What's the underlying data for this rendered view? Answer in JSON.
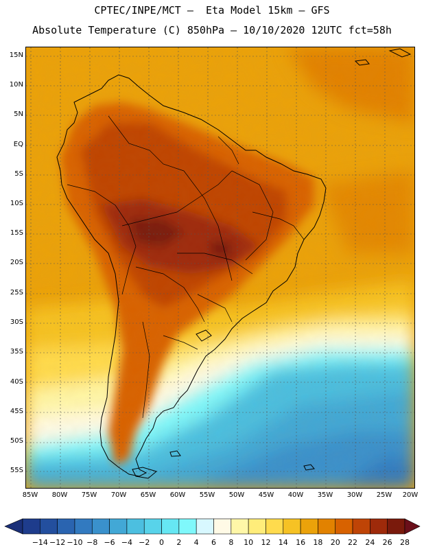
{
  "title_line1": "CPTEC/INPE/MCT –  Eta Model 15km – GFS",
  "title_line2": "Absolute Temperature (C) 850hPa – 10/10/2020 12UTC fct=58h",
  "lat_labels": [
    "15N",
    "10N",
    "5N",
    "EQ",
    "5S",
    "10S",
    "15S",
    "20S",
    "25S",
    "30S",
    "35S",
    "40S",
    "45S",
    "50S",
    "55S"
  ],
  "lon_labels": [
    "85W",
    "80W",
    "75W",
    "70W",
    "65W",
    "60W",
    "55W",
    "50W",
    "45W",
    "40W",
    "35W",
    "30W",
    "25W",
    "20W"
  ],
  "colorbar": {
    "labels": [
      "-14",
      "-12",
      "-10",
      "-8",
      "-6",
      "-4",
      "-2",
      "0",
      "2",
      "4",
      "6",
      "8",
      "10",
      "12",
      "14",
      "16",
      "18",
      "20",
      "22",
      "24",
      "26",
      "28"
    ],
    "colors": [
      "#1e3c8c",
      "#234f9e",
      "#2a64b0",
      "#327ac0",
      "#3a91cc",
      "#42a8d6",
      "#4cbfe0",
      "#58d3ea",
      "#66e7f3",
      "#7ff8fb",
      "#d8f8ff",
      "#fffae6",
      "#fff7a8",
      "#ffed7a",
      "#ffdb4d",
      "#f6c224",
      "#eba20a",
      "#e28200",
      "#d86200",
      "#bf4406",
      "#9e2a0a",
      "#7a1a0c"
    ],
    "min_arrow": "#1a2f78",
    "max_arrow": "#6a0f1a"
  }
}
